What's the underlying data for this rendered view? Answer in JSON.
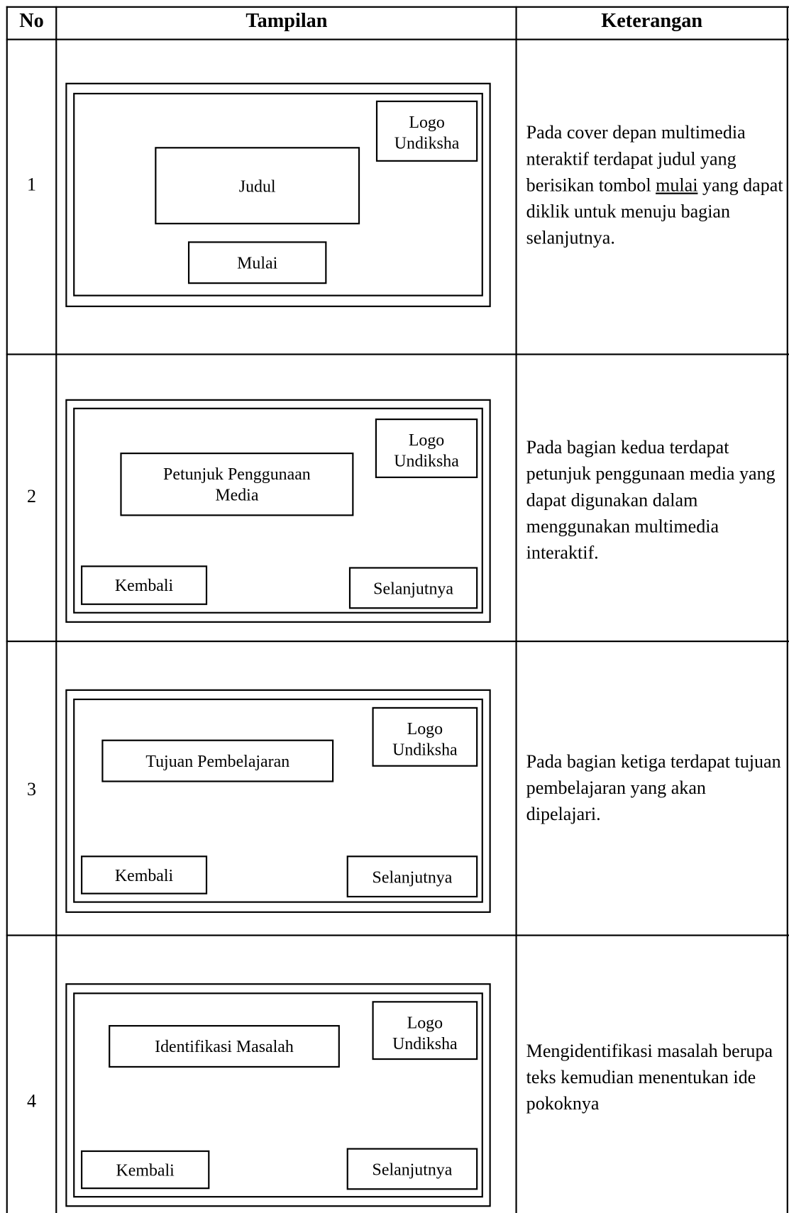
{
  "table": {
    "header": [
      "No",
      "Tampilan",
      "Keterangan"
    ],
    "rows": [
      {
        "no": "1",
        "screen": {
          "logo": [
            "Logo",
            "Undiksha"
          ],
          "title": "Judul",
          "buttons": [
            "Mulai"
          ]
        },
        "description": [
          "Pada cover depan multimedia nteraktif terdapat judul yang berisikan tombol ",
          "mulai",
          " yang dapat diklik untuk menuju bagian selanjutnya."
        ]
      },
      {
        "no": "2",
        "screen": {
          "logo": [
            "Logo",
            "Undiksha"
          ],
          "title": "Petunjuk Penggunaan Media",
          "buttons": [
            "Kembali",
            "Selanjutnya"
          ]
        },
        "description": [
          "Pada bagian kedua terdapat petunjuk penggunaan media yang dapat digunakan dalam menggunakan multimedia interaktif."
        ]
      },
      {
        "no": "3",
        "screen": {
          "logo": [
            "Logo",
            "Undiksha"
          ],
          "title": "Tujuan Pembelajaran",
          "buttons": [
            "Kembali",
            "Selanjutnya"
          ]
        },
        "description": [
          "Pada bagian ketiga terdapat tujuan pembelajaran yang akan dipelajari."
        ]
      },
      {
        "no": "4",
        "screen": {
          "logo": [
            "Logo",
            "Undiksha"
          ],
          "title": "Identifikasi Masalah",
          "buttons": [
            "Kembali",
            "Selanjutnya"
          ]
        },
        "description": [
          "Mengidentifikasi masalah berupa teks kemudian menentukan ide pokoknya"
        ]
      }
    ]
  }
}
